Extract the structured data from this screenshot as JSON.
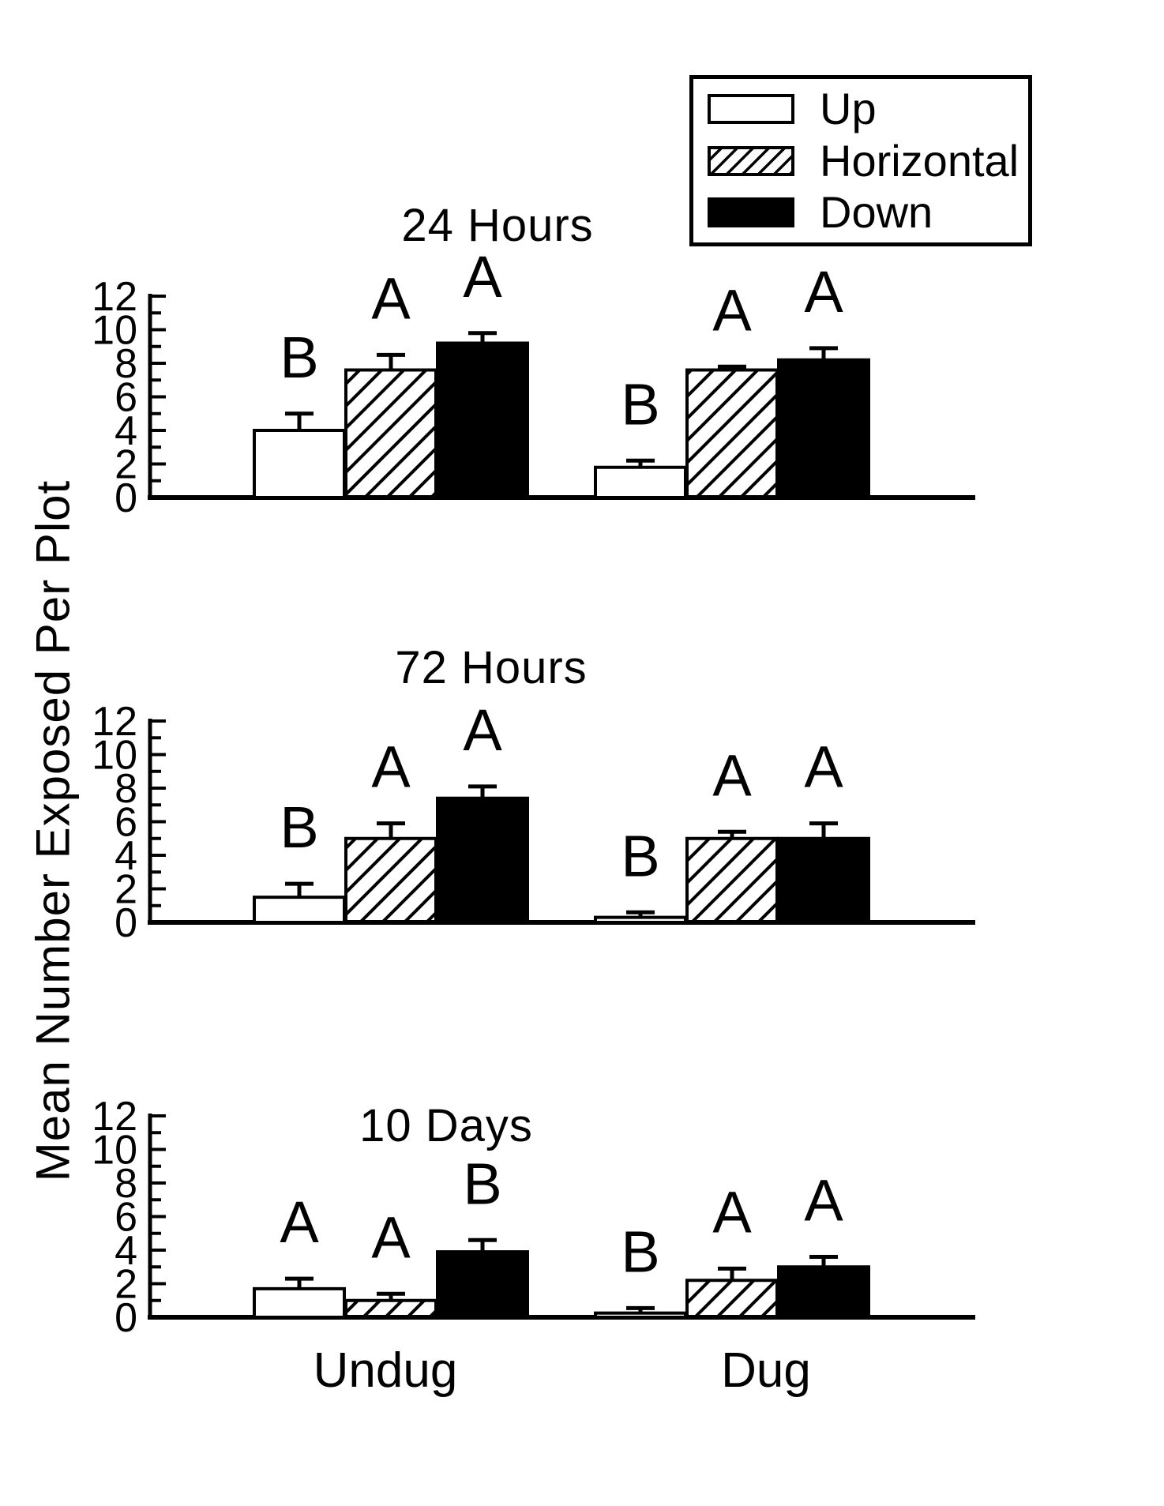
{
  "figure": {
    "y_axis_label": "Mean Number Exposed Per Plot",
    "x_category_labels": [
      "Undug",
      "Dug"
    ],
    "legend": {
      "items": [
        {
          "label": "Up",
          "fill": "white"
        },
        {
          "label": "Horizontal",
          "fill": "hatch"
        },
        {
          "label": "Down",
          "fill": "black"
        }
      ]
    },
    "colors": {
      "ink": "#000000",
      "paper": "#ffffff"
    }
  },
  "chart_data": [
    {
      "type": "bar",
      "title": "24 Hours",
      "categories": [
        "Undug",
        "Dug"
      ],
      "series": [
        {
          "name": "Up",
          "fill": "white",
          "values": [
            4.0,
            1.8
          ],
          "errors": [
            1.0,
            0.4
          ],
          "letters": [
            "B",
            "B"
          ]
        },
        {
          "name": "Horizontal",
          "fill": "hatch",
          "values": [
            7.6,
            7.6
          ],
          "errors": [
            0.9,
            0.2
          ],
          "letters": [
            "A",
            "A"
          ]
        },
        {
          "name": "Down",
          "fill": "black",
          "values": [
            9.2,
            8.2
          ],
          "errors": [
            0.6,
            0.7
          ],
          "letters": [
            "A",
            "A"
          ]
        }
      ],
      "ylim": [
        0,
        12
      ],
      "yticks": [
        0,
        2,
        4,
        6,
        8,
        10,
        12
      ],
      "grid": false,
      "error_bars": true,
      "legend_position": "top-right"
    },
    {
      "type": "bar",
      "title": "72 Hours",
      "categories": [
        "Undug",
        "Dug"
      ],
      "series": [
        {
          "name": "Up",
          "fill": "white",
          "values": [
            1.5,
            0.3
          ],
          "errors": [
            0.8,
            0.3
          ],
          "letters": [
            "B",
            "B"
          ]
        },
        {
          "name": "Horizontal",
          "fill": "hatch",
          "values": [
            5.0,
            5.0
          ],
          "errors": [
            0.9,
            0.4
          ],
          "letters": [
            "A",
            "A"
          ]
        },
        {
          "name": "Down",
          "fill": "black",
          "values": [
            7.4,
            5.0
          ],
          "errors": [
            0.7,
            0.9
          ],
          "letters": [
            "A",
            "A"
          ]
        }
      ],
      "ylim": [
        0,
        12
      ],
      "yticks": [
        0,
        2,
        4,
        6,
        8,
        10,
        12
      ],
      "grid": false,
      "error_bars": true
    },
    {
      "type": "bar",
      "title": "10 Days",
      "categories": [
        "Undug",
        "Dug"
      ],
      "series": [
        {
          "name": "Up",
          "fill": "white",
          "values": [
            1.7,
            0.25
          ],
          "errors": [
            0.6,
            0.3
          ],
          "letters": [
            "A",
            "B"
          ]
        },
        {
          "name": "Horizontal",
          "fill": "hatch",
          "values": [
            1.0,
            2.2
          ],
          "errors": [
            0.4,
            0.7
          ],
          "letters": [
            "A",
            "A"
          ]
        },
        {
          "name": "Down",
          "fill": "black",
          "values": [
            3.9,
            3.0
          ],
          "errors": [
            0.7,
            0.6
          ],
          "letters": [
            "B",
            "A"
          ]
        }
      ],
      "ylim": [
        0,
        12
      ],
      "yticks": [
        0,
        2,
        4,
        6,
        8,
        10,
        12
      ],
      "grid": false,
      "error_bars": true
    }
  ]
}
